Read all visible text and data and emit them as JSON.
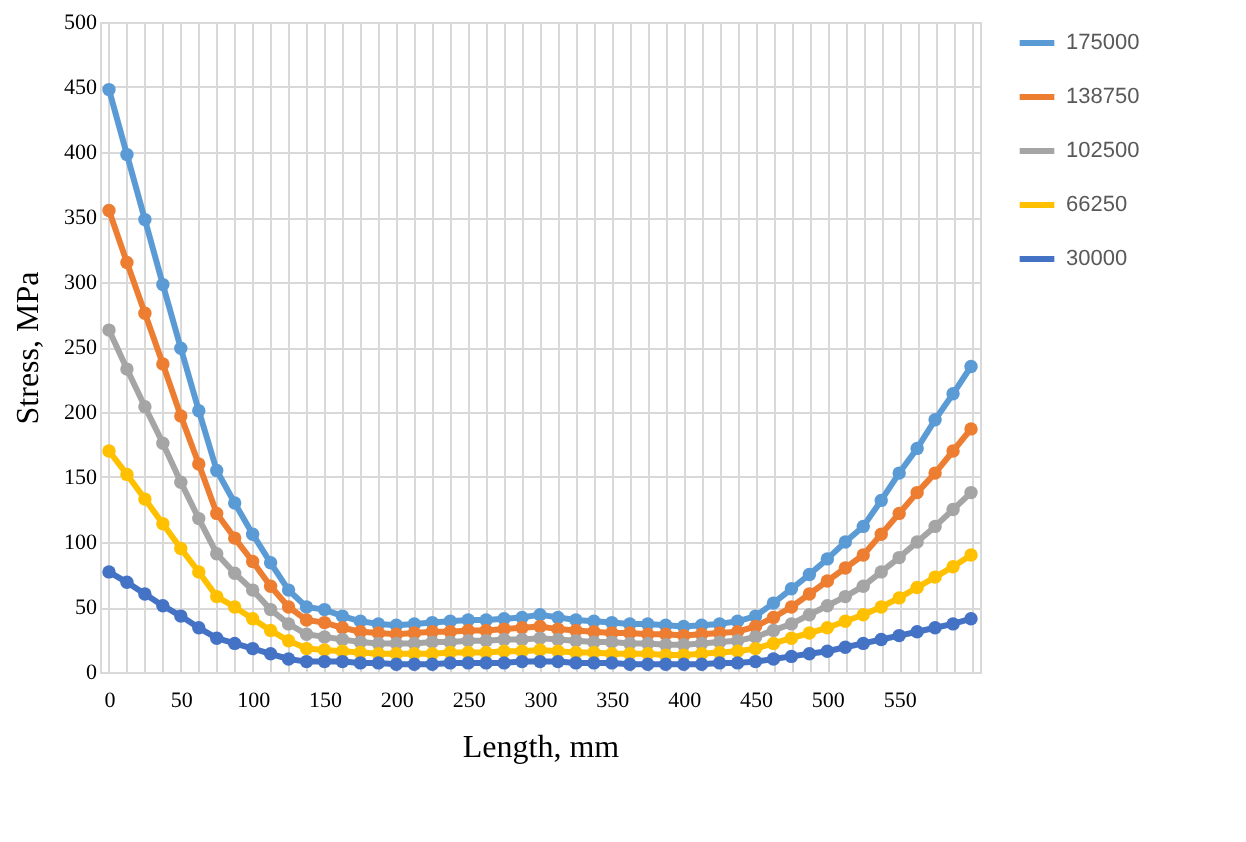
{
  "chart_data": {
    "type": "line",
    "xlabel": "Length, mm",
    "ylabel": "Stress, MPa",
    "categories": [
      "0",
      null,
      null,
      null,
      "50",
      null,
      null,
      null,
      "100",
      null,
      null,
      null,
      "150",
      null,
      null,
      null,
      "200",
      null,
      null,
      null,
      "250",
      null,
      null,
      null,
      "300",
      null,
      null,
      null,
      "350",
      null,
      null,
      null,
      "400",
      null,
      null,
      null,
      "450",
      null,
      null,
      null,
      "500",
      null,
      null,
      null,
      "550",
      null,
      null,
      null,
      null
    ],
    "ylim": [
      0,
      500
    ],
    "yticks": [
      0,
      50,
      100,
      150,
      200,
      250,
      300,
      350,
      400,
      450,
      500
    ],
    "grid": true,
    "legend": "right",
    "marker": "circle",
    "line_style": "solid",
    "series": [
      {
        "name": "175000",
        "color": "#5b9bd5",
        "values": [
          448,
          398,
          348,
          298,
          249,
          201,
          155,
          130,
          106,
          84,
          63,
          50,
          48,
          43,
          39,
          37,
          36,
          37,
          38,
          39,
          40,
          40,
          41,
          42,
          44,
          42,
          40,
          39,
          38,
          37,
          37,
          36,
          35,
          36,
          37,
          39,
          43,
          53,
          64,
          75,
          87,
          100,
          112,
          132,
          153,
          172,
          194,
          214,
          235
        ]
      },
      {
        "name": "138750",
        "color": "#ed7d31",
        "values": [
          355,
          315,
          276,
          237,
          197,
          160,
          122,
          103,
          85,
          66,
          50,
          40,
          38,
          34,
          31,
          30,
          29,
          30,
          31,
          31,
          32,
          32,
          33,
          34,
          35,
          33,
          32,
          31,
          30,
          30,
          29,
          29,
          28,
          29,
          30,
          31,
          35,
          42,
          50,
          60,
          70,
          80,
          90,
          106,
          122,
          138,
          153,
          170,
          187
        ]
      },
      {
        "name": "102500",
        "color": "#a5a5a5",
        "values": [
          263,
          233,
          204,
          176,
          146,
          118,
          91,
          76,
          63,
          48,
          37,
          29,
          27,
          25,
          23,
          22,
          22,
          22,
          23,
          23,
          24,
          24,
          25,
          25,
          26,
          25,
          24,
          23,
          23,
          22,
          22,
          21,
          21,
          22,
          23,
          24,
          27,
          32,
          37,
          44,
          51,
          58,
          66,
          77,
          88,
          100,
          112,
          125,
          138
        ]
      },
      {
        "name": "66250",
        "color": "#ffc000",
        "values": [
          170,
          152,
          133,
          114,
          95,
          77,
          58,
          50,
          41,
          32,
          24,
          18,
          17,
          16,
          15,
          14,
          14,
          14,
          14,
          15,
          15,
          15,
          16,
          16,
          17,
          16,
          15,
          15,
          14,
          14,
          14,
          13,
          13,
          14,
          15,
          16,
          18,
          22,
          26,
          30,
          34,
          39,
          44,
          50,
          57,
          65,
          73,
          81,
          90
        ]
      },
      {
        "name": "30000",
        "color": "#4472c4",
        "values": [
          77,
          69,
          60,
          51,
          43,
          34,
          26,
          22,
          18,
          14,
          10,
          8,
          8,
          8,
          7,
          7,
          6,
          6,
          6,
          7,
          7,
          7,
          7,
          8,
          8,
          8,
          7,
          7,
          7,
          6,
          6,
          6,
          6,
          6,
          7,
          7,
          8,
          10,
          12,
          14,
          16,
          19,
          22,
          25,
          28,
          31,
          34,
          37,
          41
        ]
      }
    ]
  }
}
